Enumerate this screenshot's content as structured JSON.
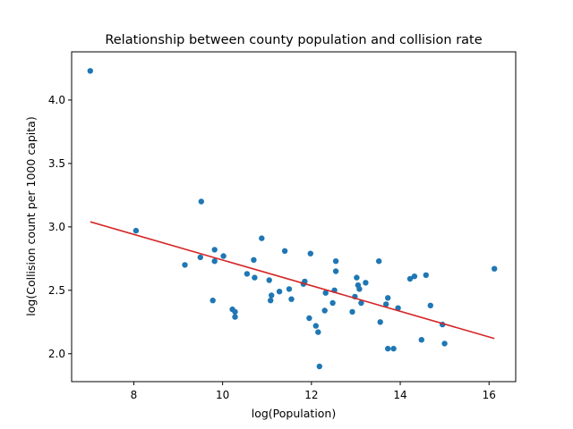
{
  "chart_data": {
    "type": "scatter",
    "title": "Relationship between county population and collision rate",
    "xlabel": "log(Population)",
    "ylabel": "log(Collision count per 1000 capita)",
    "xlim": [
      6.6,
      16.6
    ],
    "ylim": [
      1.78,
      4.38
    ],
    "xticks": [
      8,
      10,
      12,
      14,
      16
    ],
    "yticks": [
      2.0,
      2.5,
      3.0,
      3.5,
      4.0
    ],
    "grid": false,
    "legend": "none",
    "colors": {
      "points": "#1f77b4",
      "fit_line": "#d62728"
    },
    "series": [
      {
        "kind": "points",
        "x": [
          7.02,
          8.05,
          9.15,
          9.5,
          9.52,
          9.78,
          9.82,
          9.82,
          10.02,
          10.22,
          10.28,
          10.28,
          10.55,
          10.7,
          10.72,
          10.88,
          11.05,
          11.08,
          11.1,
          11.28,
          11.4,
          11.5,
          11.55,
          11.82,
          11.85,
          11.95,
          11.98,
          12.1,
          12.18,
          12.15,
          12.3,
          12.32,
          12.48,
          12.52,
          12.55,
          12.55,
          12.92,
          12.98,
          13.02,
          13.05,
          13.08,
          13.12,
          13.22,
          13.52,
          13.55,
          13.68,
          13.72,
          13.72,
          13.85,
          13.95,
          14.22,
          14.32,
          14.48,
          14.58,
          14.68,
          14.95,
          15.0,
          16.12
        ],
        "y": [
          4.23,
          2.97,
          2.7,
          2.76,
          3.2,
          2.42,
          2.73,
          2.82,
          2.77,
          2.35,
          2.29,
          2.33,
          2.63,
          2.74,
          2.6,
          2.91,
          2.58,
          2.42,
          2.46,
          2.49,
          2.81,
          2.51,
          2.43,
          2.55,
          2.57,
          2.28,
          2.79,
          2.22,
          1.9,
          2.17,
          2.34,
          2.48,
          2.4,
          2.5,
          2.65,
          2.73,
          2.33,
          2.45,
          2.6,
          2.54,
          2.51,
          2.4,
          2.56,
          2.73,
          2.25,
          2.39,
          2.04,
          2.44,
          2.04,
          2.36,
          2.59,
          2.61,
          2.11,
          2.62,
          2.38,
          2.23,
          2.08,
          2.67
        ]
      },
      {
        "kind": "fit_line",
        "x": [
          7.02,
          16.12
        ],
        "y": [
          3.04,
          2.12
        ]
      }
    ]
  }
}
